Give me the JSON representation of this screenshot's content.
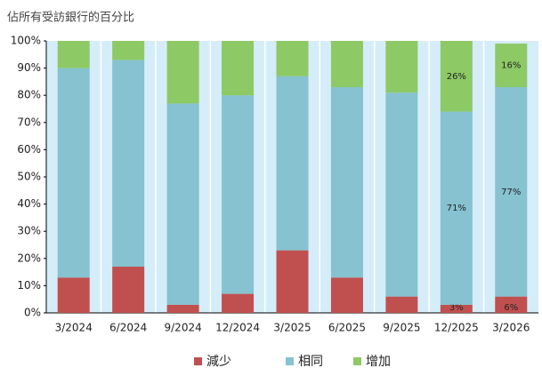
{
  "chart_data": {
    "type": "stacked_bar",
    "title": "佔所有受訪銀行的百分比",
    "categories": [
      "3/2024",
      "6/2024",
      "9/2024",
      "12/2024",
      "3/2025",
      "6/2025",
      "9/2025",
      "12/2025",
      "3/2026"
    ],
    "series": [
      {
        "name": "減少",
        "color": "#c0504f",
        "values": [
          13,
          17,
          3,
          7,
          23,
          13,
          6,
          3,
          6
        ],
        "value_labels": [
          null,
          null,
          null,
          null,
          null,
          null,
          null,
          "3%",
          "6%"
        ]
      },
      {
        "name": "相同",
        "color": "#86c2d0",
        "values": [
          77,
          76,
          74,
          73,
          64,
          70,
          75,
          71,
          77
        ],
        "value_labels": [
          null,
          null,
          null,
          null,
          null,
          null,
          null,
          "71%",
          "77%"
        ]
      },
      {
        "name": "增加",
        "color": "#8dc965",
        "values": [
          10,
          7,
          23,
          20,
          13,
          17,
          19,
          26,
          16
        ],
        "value_labels": [
          null,
          null,
          null,
          null,
          null,
          null,
          null,
          "26%",
          "16%"
        ]
      }
    ],
    "ylim": [
      0,
      100
    ],
    "yticks": [
      {
        "value": 0,
        "label": "0%"
      },
      {
        "value": 10,
        "label": "10%"
      },
      {
        "value": 20,
        "label": "20%"
      },
      {
        "value": 30,
        "label": "30%"
      },
      {
        "value": 40,
        "label": "40%"
      },
      {
        "value": 50,
        "label": "50%"
      },
      {
        "value": 60,
        "label": "60%"
      },
      {
        "value": 70,
        "label": "70%"
      },
      {
        "value": 80,
        "label": "80%"
      },
      {
        "value": 90,
        "label": "90%"
      },
      {
        "value": 100,
        "label": "100%"
      }
    ],
    "legend": "bottom"
  }
}
